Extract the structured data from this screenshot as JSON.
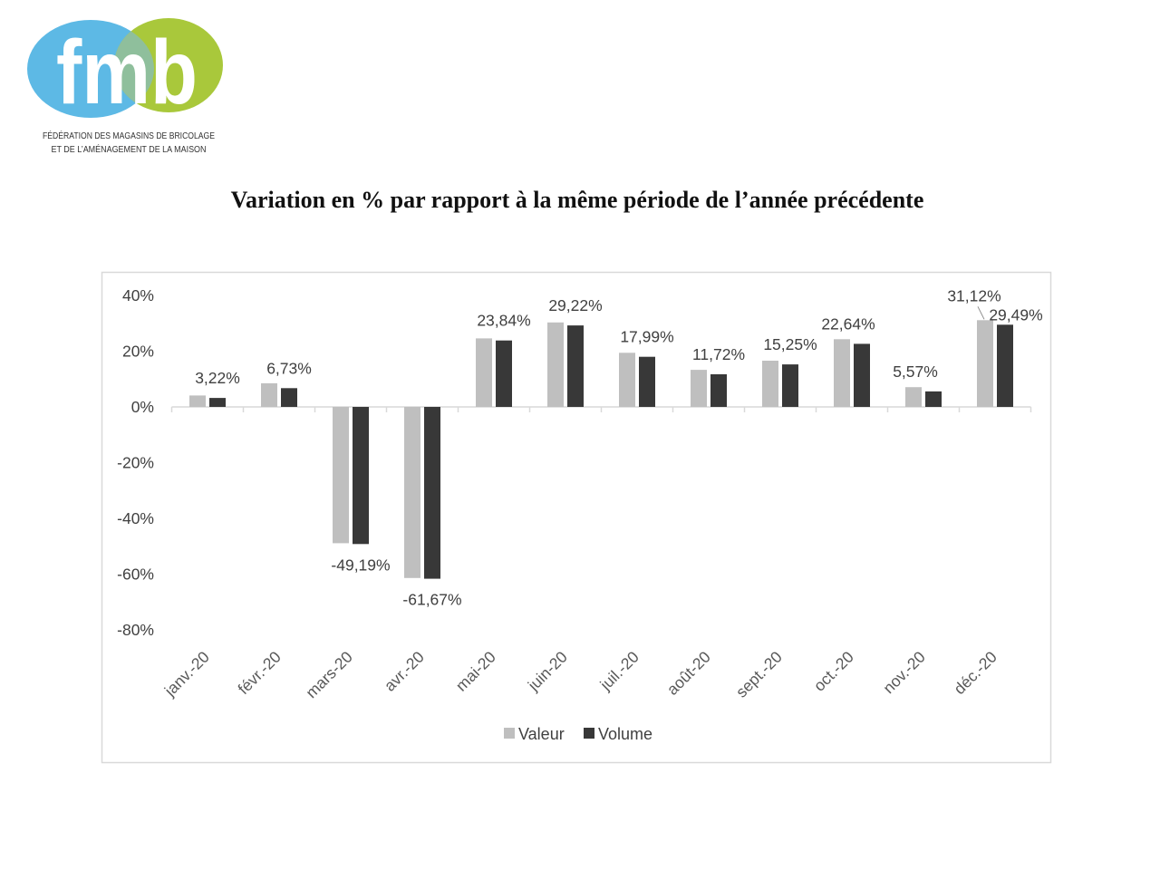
{
  "logo": {
    "wordmark": "fmb",
    "line1": "FÉDÉRATION DES MAGASINS DE BRICOLAGE",
    "line2": "ET DE L’AMÉNAGEMENT DE LA MAISON",
    "colors": {
      "blue": "#5db9e5",
      "green": "#a9c83b",
      "overlap": "#8fbf9c"
    }
  },
  "chart_data": {
    "type": "bar",
    "title": "Variation en % par rapport à la même période de l’année précédente",
    "xlabel": "",
    "ylabel": "",
    "categories": [
      "janv.-20",
      "févr.-20",
      "mars-20",
      "avr.-20",
      "mai-20",
      "juin-20",
      "juil.-20",
      "août-20",
      "sept.-20",
      "oct.-20",
      "nov.-20",
      "déc.-20"
    ],
    "series": [
      {
        "name": "Valeur",
        "color": "#bfbfbf",
        "values": [
          4.1,
          8.5,
          -48.9,
          -61.4,
          24.6,
          30.3,
          19.4,
          13.3,
          16.6,
          24.3,
          7.1,
          31.12
        ],
        "data_labels": [
          null,
          null,
          null,
          null,
          null,
          null,
          null,
          null,
          null,
          null,
          null,
          "31,12%"
        ]
      },
      {
        "name": "Volume",
        "color": "#383838",
        "values": [
          3.22,
          6.73,
          -49.19,
          -61.67,
          23.84,
          29.22,
          17.99,
          11.72,
          15.25,
          22.64,
          5.57,
          29.49
        ],
        "data_labels": [
          "3,22%",
          "6,73%",
          "-49,19%",
          "-61,67%",
          "23,84%",
          "29,22%",
          "17,99%",
          "11,72%",
          "15,25%",
          "22,64%",
          "5,57%",
          "29,49%"
        ]
      }
    ],
    "ylim": [
      -80,
      40
    ],
    "yticks": [
      40,
      20,
      0,
      -20,
      -40,
      -60,
      -80
    ],
    "ytick_labels": [
      "40%",
      "20%",
      "0%",
      "-20%",
      "-40%",
      "-60%",
      "-80%"
    ],
    "grid": false,
    "legend": "bottom"
  }
}
